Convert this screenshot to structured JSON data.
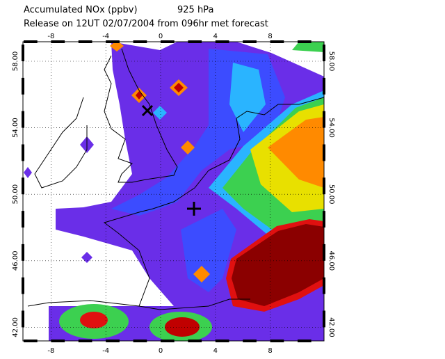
{
  "map": {
    "title": "Accumulated NOx  (ppbv)",
    "level": "925 hPa",
    "subtitle": "Release on 12UT 02/07/2004 from 096hr met forecast",
    "lon_ticks": [
      -8,
      -4,
      0,
      4,
      8
    ],
    "lat_ticks": [
      {
        "value": 58,
        "label": "58.00"
      },
      {
        "value": 54,
        "label": "54.00"
      },
      {
        "value": 50,
        "label": "50.00"
      },
      {
        "value": 46,
        "label": "46.00"
      },
      {
        "value": 42,
        "label": "42.00"
      }
    ]
  }
}
